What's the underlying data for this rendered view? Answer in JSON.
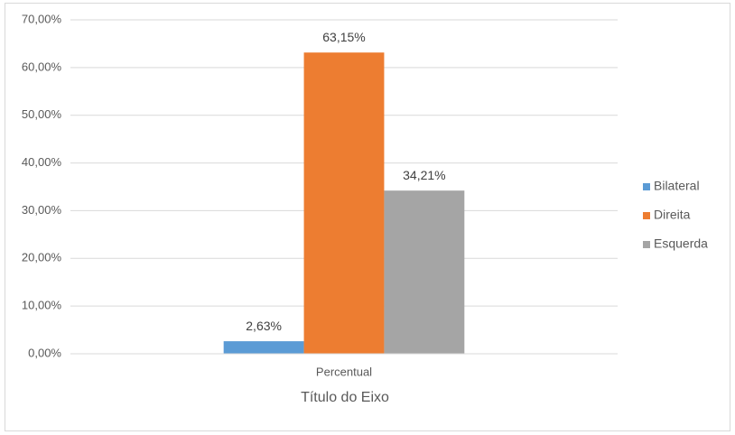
{
  "chart_data": {
    "type": "bar",
    "categories": [
      "Percentual"
    ],
    "x_axis_title": "Título do Eixo",
    "series": [
      {
        "name": "Bilateral",
        "color": "#5b9bd5",
        "values": [
          2.63
        ],
        "value_labels": [
          "2,63%"
        ]
      },
      {
        "name": "Direita",
        "color": "#ed7d31",
        "values": [
          63.15
        ],
        "value_labels": [
          "63,15%"
        ]
      },
      {
        "name": "Esquerda",
        "color": "#a5a5a5",
        "values": [
          34.21
        ],
        "value_labels": [
          "34,21%"
        ]
      }
    ],
    "ylim": [
      0,
      70
    ],
    "yticks": [
      {
        "value": 0,
        "label": "0,00%"
      },
      {
        "value": 10,
        "label": "10,00%"
      },
      {
        "value": 20,
        "label": "20,00%"
      },
      {
        "value": 30,
        "label": "30,00%"
      },
      {
        "value": 40,
        "label": "40,00%"
      },
      {
        "value": 50,
        "label": "50,00%"
      },
      {
        "value": 60,
        "label": "60,00%"
      },
      {
        "value": 70,
        "label": "70,00%"
      }
    ],
    "grid": true,
    "legend": "right"
  }
}
